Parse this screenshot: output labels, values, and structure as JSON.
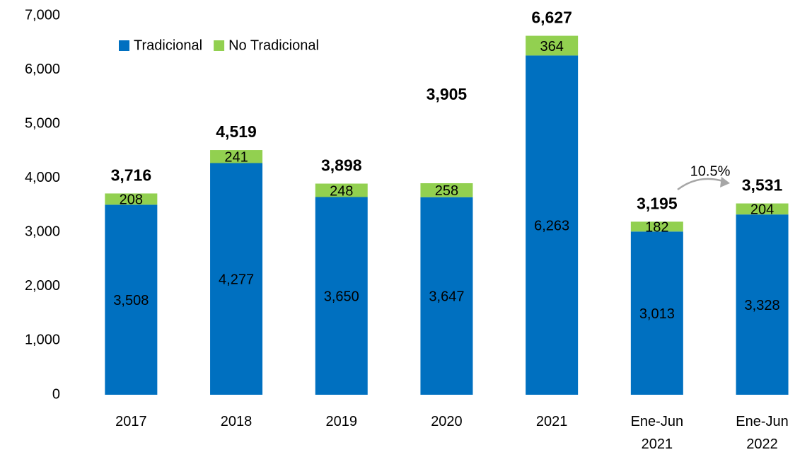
{
  "chart_data": {
    "type": "stacked_bar",
    "categories": [
      "2017",
      "2018",
      "2019",
      "2020",
      "2021",
      "Ene-Jun 2021",
      "Ene-Jun 2022"
    ],
    "series": [
      {
        "name": "Tradicional",
        "color": "#0070c0",
        "values": [
          3508,
          4277,
          3650,
          3647,
          6263,
          3013,
          3328
        ],
        "value_labels": [
          "3,508",
          "4,277",
          "3,650",
          "3,647",
          "6,263",
          "3,013",
          "3,328"
        ]
      },
      {
        "name": "No Tradicional",
        "color": "#92d050",
        "values": [
          208,
          241,
          248,
          258,
          364,
          182,
          204
        ],
        "value_labels": [
          "208",
          "241",
          "248",
          "258",
          "364",
          "182",
          "204"
        ]
      }
    ],
    "totals": {
      "values": [
        3716,
        4519,
        3898,
        3905,
        6627,
        3195,
        3531
      ],
      "value_labels": [
        "3,716",
        "4,519",
        "3,898",
        "3,905",
        "6,627",
        "3,195",
        "3,531"
      ]
    },
    "annotation": "10.5%",
    "ylim": [
      0,
      7000
    ],
    "yticks": [
      0,
      {
        "value": 1000,
        "label": "1,000"
      },
      {
        "value": 2000,
        "label": "2,000"
      },
      {
        "value": 3000,
        "label": "3,000"
      },
      {
        "value": 4000,
        "label": "4,000"
      },
      {
        "value": 5000,
        "label": "5,000"
      },
      {
        "value": 6000,
        "label": "6,000"
      },
      {
        "value": 7000,
        "label": "7,000"
      }
    ],
    "grid": false,
    "legend": "top-left"
  }
}
